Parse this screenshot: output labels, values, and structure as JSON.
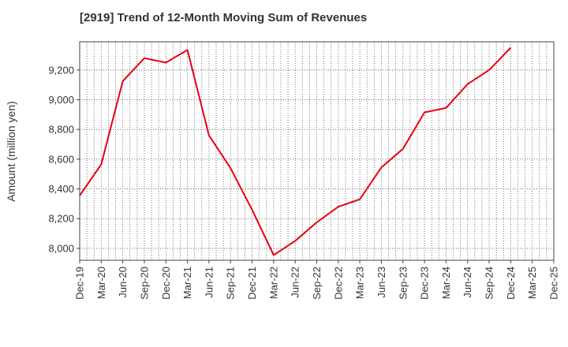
{
  "chart_data": {
    "type": "line",
    "title": "[2919]  Trend of 12-Month Moving Sum of Revenues",
    "ylabel": "Amount (million yen)",
    "xlabel": "",
    "categories": [
      "Dec-19",
      "Mar-20",
      "Jun-20",
      "Sep-20",
      "Dec-20",
      "Mar-21",
      "Jun-21",
      "Sep-21",
      "Dec-21",
      "Mar-22",
      "Jun-22",
      "Sep-22",
      "Dec-22",
      "Mar-23",
      "Jun-23",
      "Sep-23",
      "Dec-23",
      "Mar-24",
      "Jun-24",
      "Sep-24",
      "Dec-24",
      "Mar-25",
      "Dec-25"
    ],
    "series": [
      {
        "values": [
          8355,
          8565,
          9125,
          9280,
          9250,
          9335,
          8760,
          8540,
          8260,
          7955,
          8050,
          8175,
          8280,
          8330,
          8545,
          8670,
          8915,
          8945,
          9105,
          9200,
          9350,
          null,
          null
        ],
        "color": "#e60012"
      }
    ],
    "ylim": [
      7920,
      9390
    ],
    "yticks": [
      8000,
      8200,
      8400,
      8600,
      8800,
      9000,
      9200
    ],
    "ytick_labels": [
      "8,000",
      "8,200",
      "8,400",
      "8,600",
      "8,800",
      "9,000",
      "9,200"
    ],
    "grid": true,
    "grid_style": "dotted"
  }
}
